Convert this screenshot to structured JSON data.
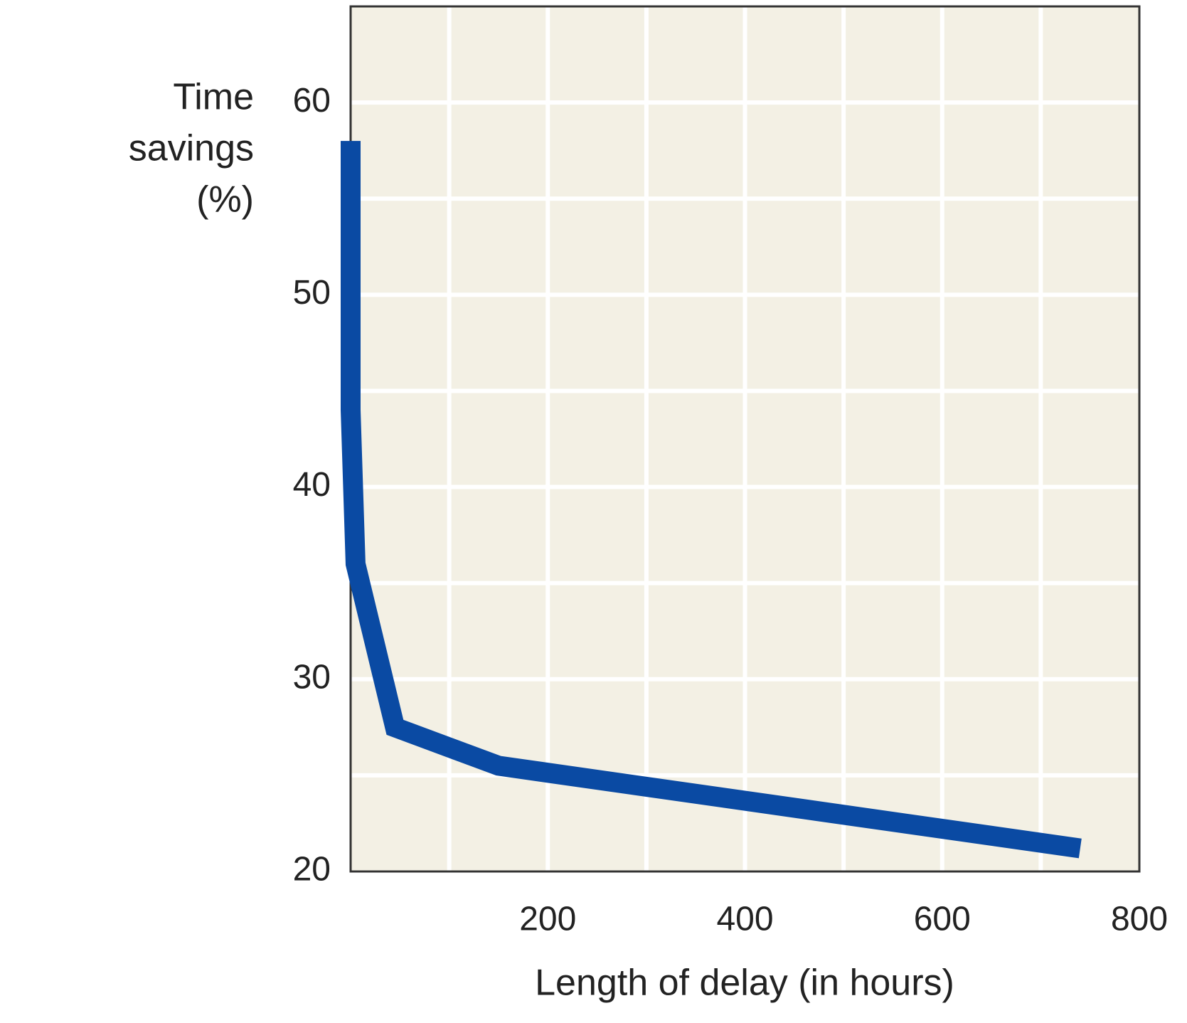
{
  "chart_data": {
    "type": "line",
    "ylabel": [
      "Time",
      "savings",
      "(%)"
    ],
    "xlabel": "Length of delay (in hours)",
    "x": [
      0,
      0,
      5,
      45,
      150,
      740
    ],
    "series": [
      {
        "color": "#0a4aa3",
        "values": [
          58,
          44,
          36,
          27.5,
          25.5,
          21.2
        ]
      }
    ],
    "xlim": [
      0,
      800
    ],
    "xticks": [
      200,
      400,
      600,
      800
    ],
    "ylim": [
      20,
      65
    ],
    "yticks": [
      20,
      30,
      40,
      50,
      60
    ],
    "xgrid": [
      100,
      200,
      300,
      400,
      500,
      600,
      700
    ],
    "ygrid": [
      25,
      30,
      35,
      40,
      45,
      50,
      55,
      60
    ],
    "grid": true,
    "background": "#f3f0e4"
  }
}
